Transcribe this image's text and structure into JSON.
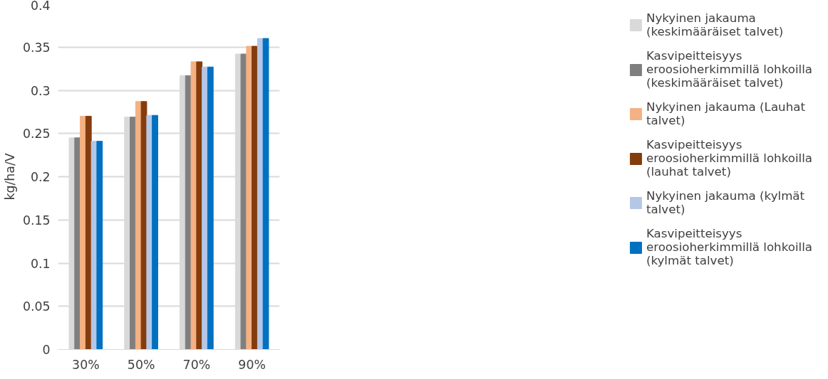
{
  "chart_data": {
    "type": "bar",
    "ylabel": "kg/ha/V",
    "categories": [
      "30%",
      "50%",
      "70%",
      "90%"
    ],
    "series": [
      {
        "name": "Nykyinen jakauma (keskimääräiset talvet)",
        "color": "#d9d9d9",
        "values": [
          0.245,
          0.269,
          0.317,
          0.342
        ]
      },
      {
        "name": "Kasvipeitteisyys eroosioherkimmillä lohkoilla (keskimääräiset talvet)",
        "color": "#7f7f7f",
        "values": [
          0.245,
          0.269,
          0.317,
          0.342
        ]
      },
      {
        "name": "Nykyinen jakauma (Lauhat talvet)",
        "color": "#f4b183",
        "values": [
          0.27,
          0.287,
          0.333,
          0.351
        ]
      },
      {
        "name": "Kasvipeitteisyys eroosioherkimmillä lohkoilla (lauhat talvet)",
        "color": "#843c0c",
        "values": [
          0.27,
          0.287,
          0.333,
          0.351
        ]
      },
      {
        "name": "Nykyinen jakauma (kylmät talvet)",
        "color": "#b4c7e7",
        "values": [
          0.241,
          0.271,
          0.327,
          0.36
        ]
      },
      {
        "name": "Kasvipeitteisyys eroosioherkimmillä lohkoilla (kylmät talvet)",
        "color": "#0070c0",
        "values": [
          0.241,
          0.271,
          0.327,
          0.36
        ]
      }
    ],
    "ylim": [
      0,
      0.4
    ],
    "yticks": [
      0,
      0.05,
      0.1,
      0.15,
      0.2,
      0.25,
      0.3,
      0.35,
      0.4
    ],
    "grid": "y",
    "legend": "right"
  }
}
